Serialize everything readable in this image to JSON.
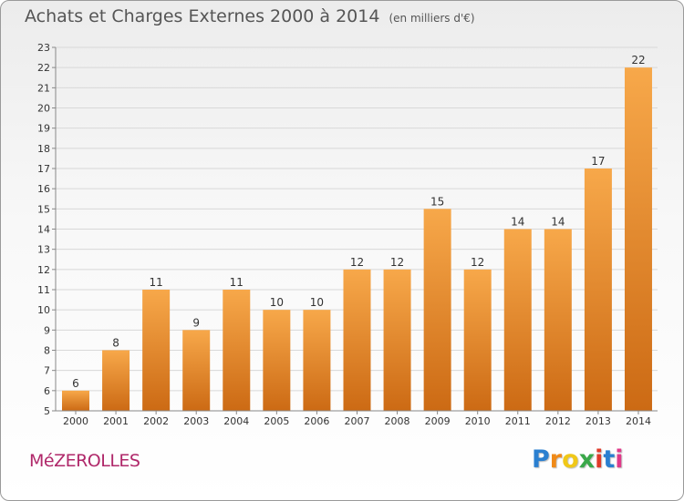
{
  "header": {
    "title": "Achats et Charges Externes 2000 à 2014",
    "subtitle": "(en milliers d'€)"
  },
  "commune": "MéZEROLLES",
  "logo": {
    "text": "Proxiti",
    "letters": [
      "P",
      "r",
      "o",
      "x",
      "i",
      "t",
      "i"
    ],
    "colors": [
      "#2a7fd0",
      "#f08a18",
      "#f0c818",
      "#3aa84a",
      "#e03a2a",
      "#2a7fd0",
      "#e03a8a"
    ]
  },
  "colors": {
    "bar_top": "#f7a84a",
    "bar_bottom": "#cc6a14",
    "grid": "#d8d8d8",
    "axis": "#888888",
    "commune": "#b0286a"
  },
  "chart_data": {
    "type": "bar",
    "title": "Achats et Charges Externes 2000 à 2014",
    "subtitle": "(en milliers d'€)",
    "xlabel": "",
    "ylabel": "",
    "categories": [
      "2000",
      "2001",
      "2002",
      "2003",
      "2004",
      "2005",
      "2006",
      "2007",
      "2008",
      "2009",
      "2010",
      "2011",
      "2012",
      "2013",
      "2014"
    ],
    "values": [
      6,
      8,
      11,
      9,
      11,
      10,
      10,
      12,
      12,
      15,
      12,
      14,
      14,
      17,
      22
    ],
    "ylim": [
      5,
      23
    ],
    "yticks": [
      5,
      6,
      7,
      8,
      9,
      10,
      11,
      12,
      13,
      14,
      15,
      16,
      17,
      18,
      19,
      20,
      21,
      22,
      23
    ],
    "grid": true,
    "data_labels": true
  }
}
